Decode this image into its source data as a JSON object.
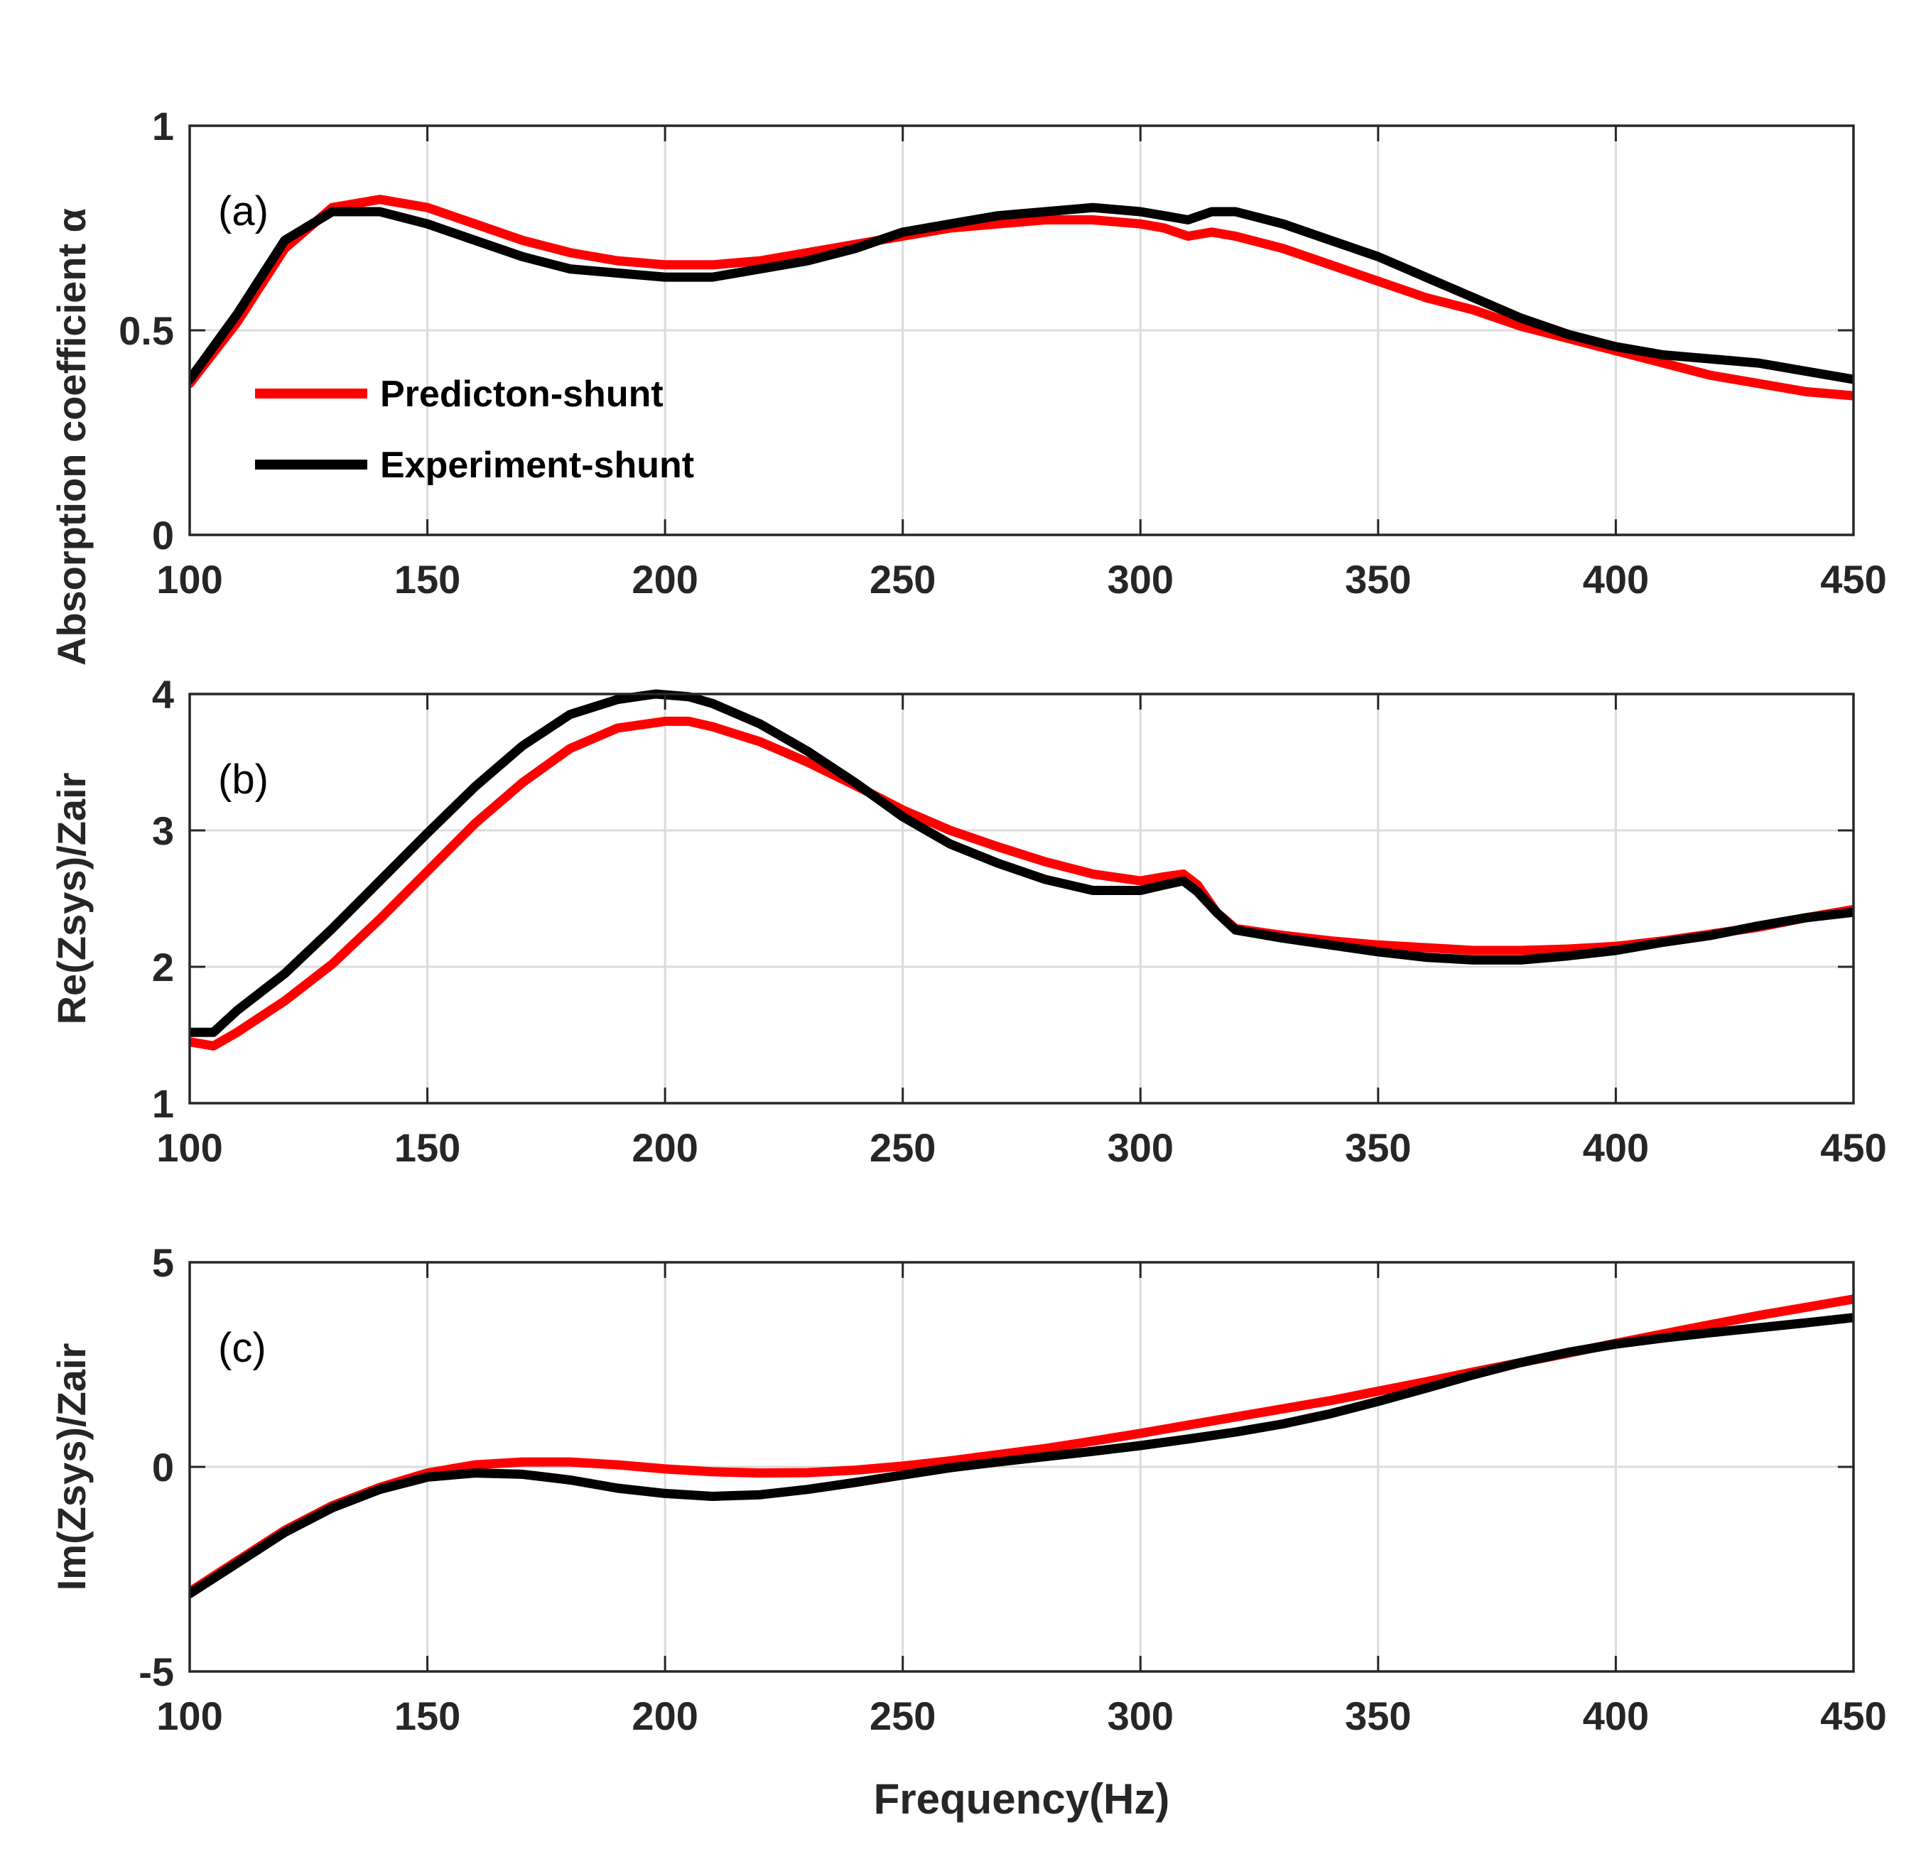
{
  "chart_data": [
    {
      "type": "line",
      "panel_label": "(a)",
      "ylabel": "Absorption coefficient α",
      "xlabel": "",
      "xlim": [
        100,
        450
      ],
      "ylim": [
        0,
        1
      ],
      "xticks": [
        100,
        150,
        200,
        250,
        300,
        350,
        400,
        450
      ],
      "yticks": [
        0,
        0.5,
        1
      ],
      "grid": true,
      "legend_position": "middle-left",
      "series": [
        {
          "name": "Predicton-shunt",
          "color": "#ff0000",
          "points": [
            [
              100,
              0.37
            ],
            [
              110,
              0.52
            ],
            [
              120,
              0.7
            ],
            [
              130,
              0.8
            ],
            [
              140,
              0.82
            ],
            [
              150,
              0.8
            ],
            [
              160,
              0.76
            ],
            [
              170,
              0.72
            ],
            [
              180,
              0.69
            ],
            [
              190,
              0.67
            ],
            [
              200,
              0.66
            ],
            [
              210,
              0.66
            ],
            [
              220,
              0.67
            ],
            [
              230,
              0.69
            ],
            [
              240,
              0.71
            ],
            [
              250,
              0.73
            ],
            [
              260,
              0.75
            ],
            [
              270,
              0.76
            ],
            [
              280,
              0.77
            ],
            [
              290,
              0.77
            ],
            [
              300,
              0.76
            ],
            [
              305,
              0.75
            ],
            [
              310,
              0.73
            ],
            [
              315,
              0.74
            ],
            [
              320,
              0.73
            ],
            [
              330,
              0.7
            ],
            [
              340,
              0.66
            ],
            [
              350,
              0.62
            ],
            [
              360,
              0.58
            ],
            [
              370,
              0.55
            ],
            [
              380,
              0.51
            ],
            [
              390,
              0.48
            ],
            [
              400,
              0.45
            ],
            [
              410,
              0.42
            ],
            [
              420,
              0.39
            ],
            [
              430,
              0.37
            ],
            [
              440,
              0.35
            ],
            [
              450,
              0.34
            ]
          ]
        },
        {
          "name": "Experiment-shunt",
          "color": "#000000",
          "points": [
            [
              100,
              0.38
            ],
            [
              110,
              0.54
            ],
            [
              120,
              0.72
            ],
            [
              130,
              0.79
            ],
            [
              140,
              0.79
            ],
            [
              150,
              0.76
            ],
            [
              160,
              0.72
            ],
            [
              170,
              0.68
            ],
            [
              180,
              0.65
            ],
            [
              190,
              0.64
            ],
            [
              200,
              0.63
            ],
            [
              210,
              0.63
            ],
            [
              220,
              0.65
            ],
            [
              230,
              0.67
            ],
            [
              240,
              0.7
            ],
            [
              250,
              0.74
            ],
            [
              260,
              0.76
            ],
            [
              270,
              0.78
            ],
            [
              280,
              0.79
            ],
            [
              290,
              0.8
            ],
            [
              300,
              0.79
            ],
            [
              305,
              0.78
            ],
            [
              310,
              0.77
            ],
            [
              315,
              0.79
            ],
            [
              320,
              0.79
            ],
            [
              330,
              0.76
            ],
            [
              340,
              0.72
            ],
            [
              350,
              0.68
            ],
            [
              360,
              0.63
            ],
            [
              370,
              0.58
            ],
            [
              380,
              0.53
            ],
            [
              390,
              0.49
            ],
            [
              400,
              0.46
            ],
            [
              410,
              0.44
            ],
            [
              420,
              0.43
            ],
            [
              430,
              0.42
            ],
            [
              440,
              0.4
            ],
            [
              450,
              0.38
            ]
          ]
        }
      ]
    },
    {
      "type": "line",
      "panel_label": "(b)",
      "ylabel": "Re(Zsys)/Zair",
      "xlabel": "",
      "xlim": [
        100,
        450
      ],
      "ylim": [
        1,
        4
      ],
      "xticks": [
        100,
        150,
        200,
        250,
        300,
        350,
        400,
        450
      ],
      "yticks": [
        1,
        2,
        3,
        4
      ],
      "grid": true,
      "series": [
        {
          "name": "Predicton-shunt",
          "color": "#ff0000",
          "points": [
            [
              100,
              1.45
            ],
            [
              105,
              1.42
            ],
            [
              110,
              1.52
            ],
            [
              120,
              1.75
            ],
            [
              130,
              2.02
            ],
            [
              140,
              2.35
            ],
            [
              150,
              2.7
            ],
            [
              160,
              3.05
            ],
            [
              170,
              3.35
            ],
            [
              180,
              3.6
            ],
            [
              190,
              3.75
            ],
            [
              200,
              3.8
            ],
            [
              205,
              3.8
            ],
            [
              210,
              3.76
            ],
            [
              220,
              3.65
            ],
            [
              230,
              3.5
            ],
            [
              240,
              3.33
            ],
            [
              250,
              3.15
            ],
            [
              260,
              3.0
            ],
            [
              270,
              2.88
            ],
            [
              280,
              2.77
            ],
            [
              290,
              2.68
            ],
            [
              300,
              2.63
            ],
            [
              305,
              2.66
            ],
            [
              309,
              2.68
            ],
            [
              312,
              2.6
            ],
            [
              316,
              2.4
            ],
            [
              320,
              2.28
            ],
            [
              330,
              2.23
            ],
            [
              340,
              2.19
            ],
            [
              350,
              2.16
            ],
            [
              360,
              2.14
            ],
            [
              370,
              2.12
            ],
            [
              380,
              2.12
            ],
            [
              390,
              2.13
            ],
            [
              400,
              2.15
            ],
            [
              410,
              2.19
            ],
            [
              420,
              2.24
            ],
            [
              430,
              2.29
            ],
            [
              440,
              2.36
            ],
            [
              450,
              2.42
            ]
          ]
        },
        {
          "name": "Experiment-shunt",
          "color": "#000000",
          "points": [
            [
              100,
              1.52
            ],
            [
              105,
              1.52
            ],
            [
              110,
              1.68
            ],
            [
              120,
              1.95
            ],
            [
              130,
              2.28
            ],
            [
              140,
              2.63
            ],
            [
              150,
              2.98
            ],
            [
              160,
              3.32
            ],
            [
              170,
              3.62
            ],
            [
              180,
              3.85
            ],
            [
              190,
              3.96
            ],
            [
              198,
              4.0
            ],
            [
              205,
              3.98
            ],
            [
              210,
              3.93
            ],
            [
              220,
              3.78
            ],
            [
              230,
              3.58
            ],
            [
              240,
              3.35
            ],
            [
              250,
              3.1
            ],
            [
              260,
              2.9
            ],
            [
              270,
              2.76
            ],
            [
              280,
              2.64
            ],
            [
              290,
              2.56
            ],
            [
              300,
              2.56
            ],
            [
              305,
              2.6
            ],
            [
              309,
              2.63
            ],
            [
              312,
              2.55
            ],
            [
              316,
              2.4
            ],
            [
              320,
              2.27
            ],
            [
              330,
              2.21
            ],
            [
              340,
              2.16
            ],
            [
              350,
              2.11
            ],
            [
              360,
              2.07
            ],
            [
              370,
              2.05
            ],
            [
              380,
              2.05
            ],
            [
              390,
              2.08
            ],
            [
              400,
              2.12
            ],
            [
              410,
              2.18
            ],
            [
              420,
              2.23
            ],
            [
              430,
              2.3
            ],
            [
              440,
              2.36
            ],
            [
              450,
              2.4
            ]
          ]
        }
      ]
    },
    {
      "type": "line",
      "panel_label": "(c)",
      "ylabel": "Im(Zsys)/Zair",
      "xlabel": "Frequency(Hz)",
      "xlim": [
        100,
        450
      ],
      "ylim": [
        -5,
        5
      ],
      "xticks": [
        100,
        150,
        200,
        250,
        300,
        350,
        400,
        450
      ],
      "yticks": [
        -5,
        0,
        5
      ],
      "grid": true,
      "series": [
        {
          "name": "Predicton-shunt",
          "color": "#ff0000",
          "points": [
            [
              100,
              -3.05
            ],
            [
              110,
              -2.3
            ],
            [
              120,
              -1.55
            ],
            [
              130,
              -0.95
            ],
            [
              140,
              -0.5
            ],
            [
              150,
              -0.15
            ],
            [
              160,
              0.05
            ],
            [
              170,
              0.12
            ],
            [
              180,
              0.12
            ],
            [
              190,
              0.05
            ],
            [
              200,
              -0.05
            ],
            [
              210,
              -0.12
            ],
            [
              220,
              -0.15
            ],
            [
              230,
              -0.14
            ],
            [
              240,
              -0.08
            ],
            [
              250,
              0.02
            ],
            [
              260,
              0.15
            ],
            [
              270,
              0.3
            ],
            [
              280,
              0.45
            ],
            [
              290,
              0.63
            ],
            [
              300,
              0.82
            ],
            [
              310,
              1.02
            ],
            [
              320,
              1.22
            ],
            [
              330,
              1.42
            ],
            [
              340,
              1.62
            ],
            [
              350,
              1.85
            ],
            [
              360,
              2.08
            ],
            [
              370,
              2.32
            ],
            [
              380,
              2.55
            ],
            [
              390,
              2.78
            ],
            [
              400,
              3.02
            ],
            [
              410,
              3.25
            ],
            [
              420,
              3.48
            ],
            [
              430,
              3.7
            ],
            [
              440,
              3.9
            ],
            [
              450,
              4.1
            ]
          ]
        },
        {
          "name": "Experiment-shunt",
          "color": "#000000",
          "points": [
            [
              100,
              -3.1
            ],
            [
              110,
              -2.35
            ],
            [
              120,
              -1.6
            ],
            [
              130,
              -1.0
            ],
            [
              140,
              -0.55
            ],
            [
              150,
              -0.25
            ],
            [
              160,
              -0.15
            ],
            [
              170,
              -0.18
            ],
            [
              180,
              -0.32
            ],
            [
              190,
              -0.52
            ],
            [
              200,
              -0.65
            ],
            [
              210,
              -0.72
            ],
            [
              220,
              -0.68
            ],
            [
              230,
              -0.55
            ],
            [
              240,
              -0.38
            ],
            [
              250,
              -0.2
            ],
            [
              260,
              -0.02
            ],
            [
              270,
              0.12
            ],
            [
              280,
              0.25
            ],
            [
              290,
              0.38
            ],
            [
              300,
              0.52
            ],
            [
              310,
              0.68
            ],
            [
              320,
              0.85
            ],
            [
              330,
              1.05
            ],
            [
              340,
              1.3
            ],
            [
              350,
              1.6
            ],
            [
              360,
              1.92
            ],
            [
              370,
              2.25
            ],
            [
              380,
              2.55
            ],
            [
              390,
              2.8
            ],
            [
              400,
              3.0
            ],
            [
              410,
              3.15
            ],
            [
              420,
              3.28
            ],
            [
              430,
              3.4
            ],
            [
              440,
              3.52
            ],
            [
              450,
              3.65
            ]
          ]
        }
      ]
    }
  ]
}
